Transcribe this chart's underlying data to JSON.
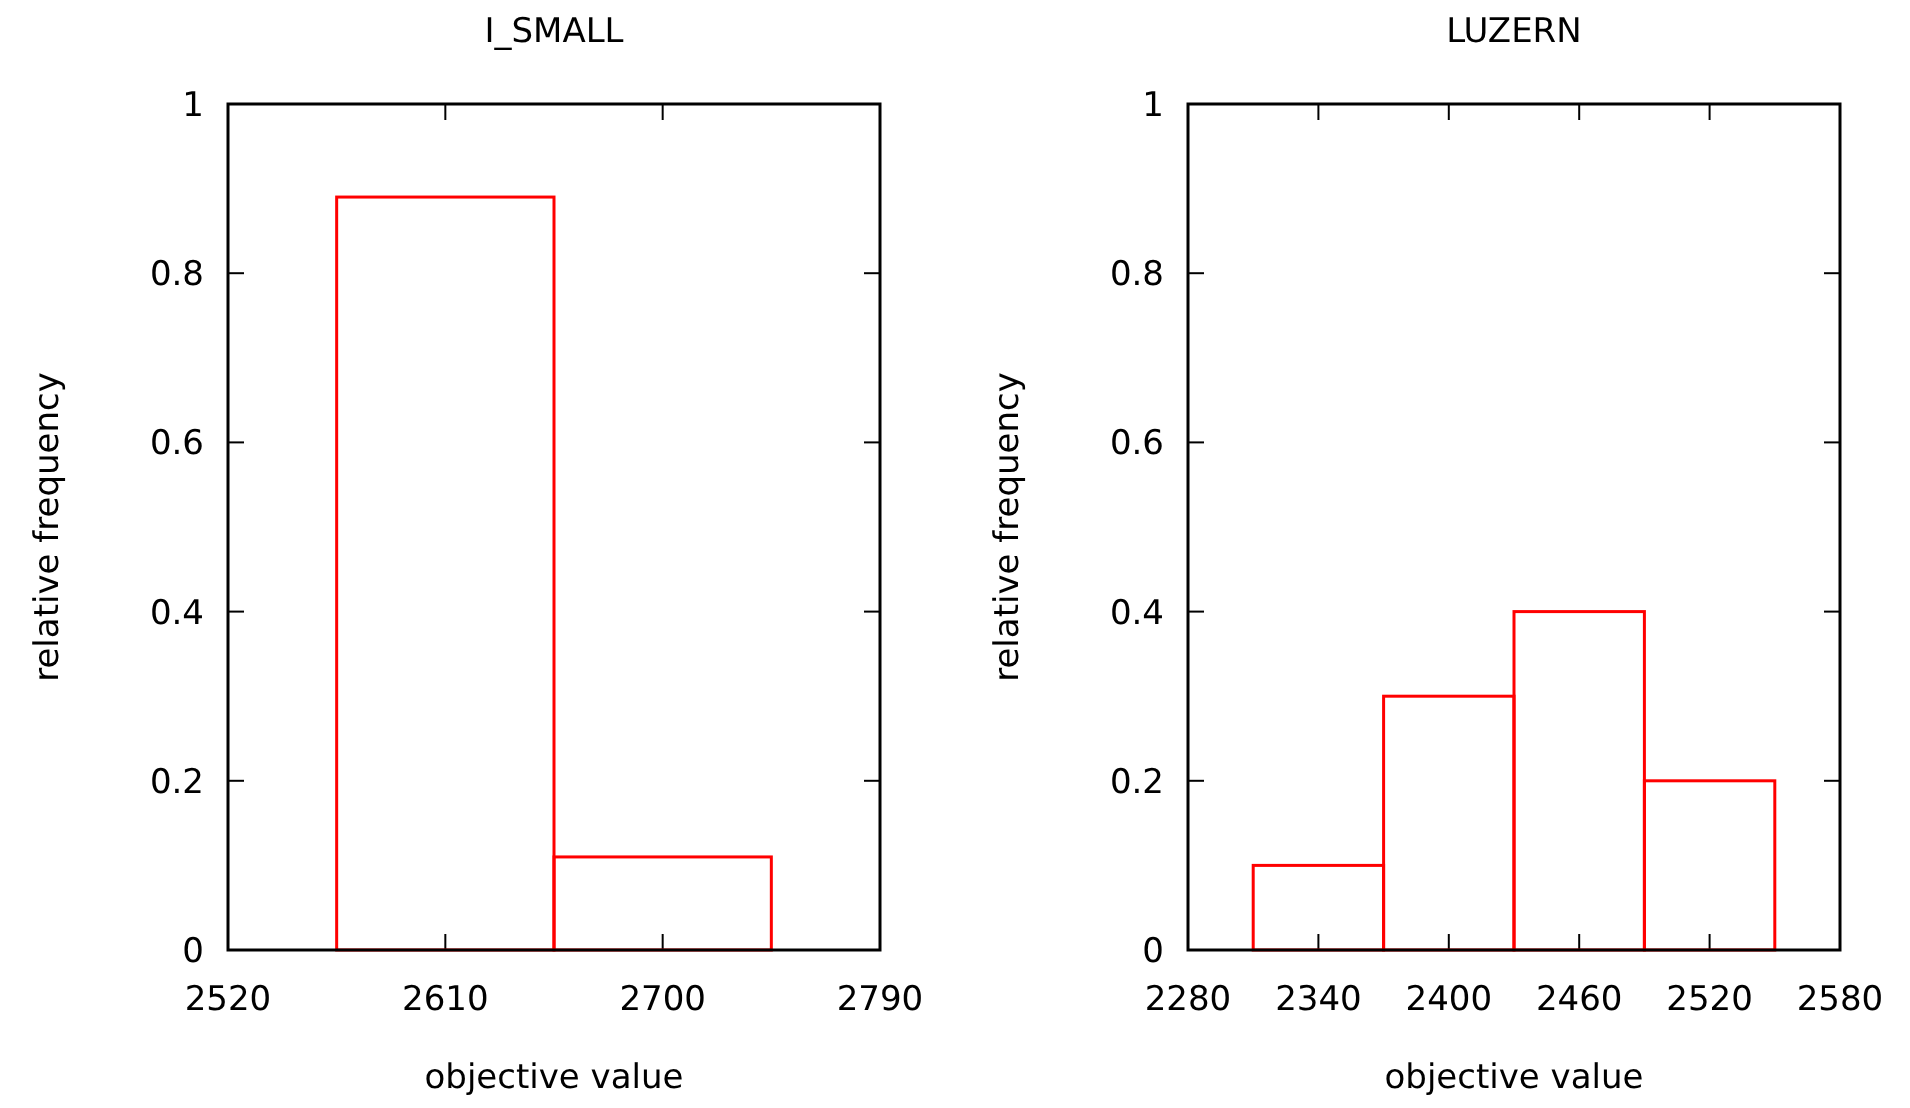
{
  "chart_data": [
    {
      "type": "histogram",
      "title": "I_SMALL",
      "xlabel": "objective value",
      "ylabel": "relative frequency",
      "bins": [
        2565,
        2655,
        2745
      ],
      "values": [
        0.89,
        0.11
      ],
      "color": "#ff0000",
      "xlim": [
        2520,
        2790
      ],
      "xticks": [
        2520,
        2610,
        2700,
        2790
      ],
      "ylim": [
        0,
        1
      ],
      "yticks": [
        0,
        0.2,
        0.4,
        0.6,
        0.8,
        1
      ],
      "grid": false
    },
    {
      "type": "histogram",
      "title": "LUZERN",
      "xlabel": "objective value",
      "ylabel": "relative frequency",
      "bins": [
        2310,
        2370,
        2430,
        2490,
        2550
      ],
      "values": [
        0.1,
        0.3,
        0.4,
        0.2
      ],
      "color": "#ff0000",
      "xlim": [
        2280,
        2580
      ],
      "xticks": [
        2280,
        2340,
        2400,
        2460,
        2520,
        2580
      ],
      "ylim": [
        0,
        1
      ],
      "yticks": [
        0,
        0.2,
        0.4,
        0.6,
        0.8,
        1
      ],
      "grid": false
    }
  ]
}
